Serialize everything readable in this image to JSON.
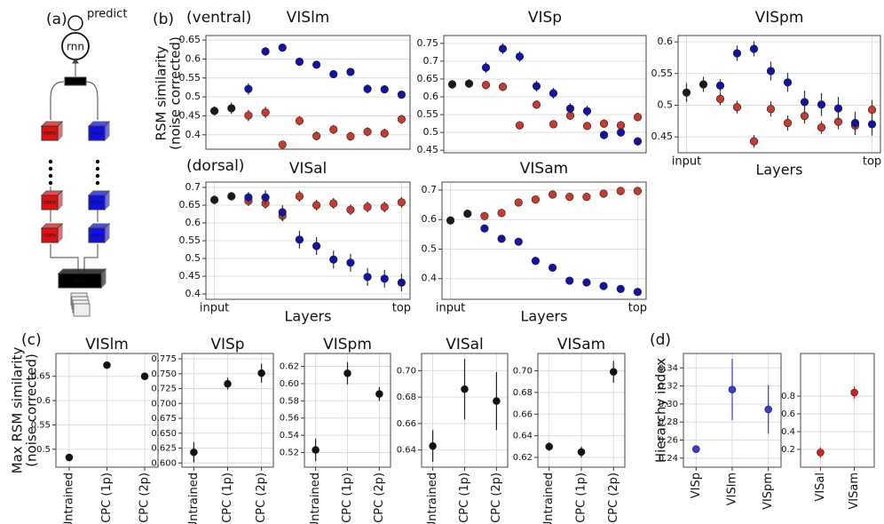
{
  "panel_labels": [
    "(a)",
    "(b)",
    "(c)",
    "(d)"
  ],
  "annotations": [
    "(ventral)",
    "(dorsal)"
  ],
  "diagram": {
    "predict": "predict",
    "rnn": "rnn",
    "conv": "conv"
  },
  "chart_data": [
    {
      "type": "scatter",
      "title": "VISlm",
      "ylabel": [
        "RSM similarity",
        "(noise corrected)"
      ],
      "xlim": [
        -0.5,
        11.5
      ],
      "ylim": [
        0.362,
        0.662
      ],
      "yticks": [
        0.4,
        0.45,
        0.5,
        0.55,
        0.6,
        0.65
      ],
      "grid": true,
      "series": [
        {
          "color": "#1a1a1a",
          "x": [
            0,
            1
          ],
          "values": [
            0.463,
            0.47
          ],
          "errors": [
            0.012,
            0.015
          ]
        },
        {
          "color": "#c83a2e",
          "x": [
            2,
            3,
            4,
            5,
            6,
            7,
            8,
            9,
            10,
            11
          ],
          "values": [
            0.451,
            0.459,
            0.374,
            0.437,
            0.397,
            0.414,
            0.396,
            0.408,
            0.404,
            0.441
          ],
          "errors": [
            0.015,
            0.015,
            0.01,
            0.012,
            0.012,
            0.012,
            0.012,
            0.012,
            0.012,
            0.012
          ]
        },
        {
          "color": "#1212a8",
          "x": [
            2,
            3,
            4,
            5,
            6,
            7,
            8,
            9,
            10,
            11
          ],
          "values": [
            0.521,
            0.62,
            0.63,
            0.593,
            0.585,
            0.56,
            0.566,
            0.521,
            0.52,
            0.506
          ],
          "errors": [
            0.015,
            0.012,
            0.01,
            0.008,
            0.008,
            0.008,
            0.01,
            0.012,
            0.01,
            0.01
          ]
        }
      ]
    },
    {
      "type": "scatter",
      "title": "VISp",
      "xlim": [
        -0.5,
        11.5
      ],
      "ylim": [
        0.443,
        0.772
      ],
      "yticks": [
        0.45,
        0.5,
        0.55,
        0.6,
        0.65,
        0.7,
        0.75
      ],
      "grid": true,
      "series": [
        {
          "color": "#1a1a1a",
          "x": [
            0,
            1
          ],
          "values": [
            0.635,
            0.637
          ],
          "errors": [
            0.012,
            0.012
          ]
        },
        {
          "color": "#c83a2e",
          "x": [
            2,
            3,
            4,
            5,
            6,
            7,
            8,
            9,
            10,
            11
          ],
          "values": [
            0.633,
            0.628,
            0.52,
            0.578,
            0.523,
            0.547,
            0.518,
            0.525,
            0.52,
            0.543
          ],
          "errors": [
            0.012,
            0.012,
            0.01,
            0.012,
            0.01,
            0.012,
            0.01,
            0.012,
            0.012,
            0.012
          ]
        },
        {
          "color": "#1212a8",
          "x": [
            2,
            3,
            4,
            5,
            6,
            7,
            8,
            9,
            10,
            11
          ],
          "values": [
            0.682,
            0.735,
            0.713,
            0.63,
            0.61,
            0.567,
            0.56,
            0.493,
            0.5,
            0.475
          ],
          "errors": [
            0.015,
            0.015,
            0.015,
            0.015,
            0.015,
            0.015,
            0.015,
            0.012,
            0.012,
            0.012
          ]
        }
      ]
    },
    {
      "type": "scatter",
      "title": "VISpm",
      "xlabel": "Layers",
      "xlim": [
        -0.5,
        11.5
      ],
      "ylim": [
        0.425,
        0.61
      ],
      "yticks": [
        0.45,
        0.5,
        0.55,
        0.6
      ],
      "xticks": [
        {
          "value": 0,
          "label": "input"
        },
        {
          "value": 11,
          "label": "top"
        }
      ],
      "grid": true,
      "series": [
        {
          "color": "#1a1a1a",
          "x": [
            0,
            1
          ],
          "values": [
            0.52,
            0.533
          ],
          "errors": [
            0.015,
            0.012
          ]
        },
        {
          "color": "#c83a2e",
          "x": [
            2,
            3,
            4,
            5,
            6,
            7,
            8,
            9,
            10,
            11
          ],
          "values": [
            0.51,
            0.497,
            0.443,
            0.494,
            0.472,
            0.483,
            0.465,
            0.474,
            0.468,
            0.493
          ],
          "errors": [
            0.01,
            0.01,
            0.01,
            0.012,
            0.012,
            0.012,
            0.01,
            0.012,
            0.015,
            0.015
          ]
        },
        {
          "color": "#1212a8",
          "x": [
            2,
            3,
            4,
            5,
            6,
            7,
            8,
            9,
            10,
            11
          ],
          "values": [
            0.531,
            0.582,
            0.589,
            0.554,
            0.536,
            0.505,
            0.501,
            0.495,
            0.472,
            0.47
          ],
          "errors": [
            0.01,
            0.012,
            0.012,
            0.015,
            0.015,
            0.018,
            0.018,
            0.018,
            0.018,
            0.018
          ]
        }
      ]
    },
    {
      "type": "scatter",
      "title": "VISal",
      "xlabel": "Layers",
      "xlim": [
        -0.5,
        11.5
      ],
      "ylim": [
        0.385,
        0.715
      ],
      "yticks": [
        0.4,
        0.45,
        0.5,
        0.55,
        0.6,
        0.65,
        0.7
      ],
      "xticks": [
        {
          "value": 0,
          "label": "input"
        },
        {
          "value": 11,
          "label": "top"
        }
      ],
      "grid": true,
      "series": [
        {
          "color": "#1a1a1a",
          "x": [
            0,
            1
          ],
          "values": [
            0.665,
            0.675
          ],
          "errors": [
            0.012,
            0.012
          ]
        },
        {
          "color": "#c83a2e",
          "x": [
            2,
            3,
            4,
            5,
            6,
            7,
            8,
            9,
            10,
            11
          ],
          "values": [
            0.662,
            0.655,
            0.62,
            0.675,
            0.65,
            0.655,
            0.637,
            0.645,
            0.645,
            0.658
          ],
          "errors": [
            0.015,
            0.015,
            0.015,
            0.015,
            0.015,
            0.015,
            0.015,
            0.015,
            0.015,
            0.015
          ]
        },
        {
          "color": "#1212a8",
          "x": [
            2,
            3,
            4,
            5,
            6,
            7,
            8,
            9,
            10,
            11
          ],
          "values": [
            0.672,
            0.672,
            0.63,
            0.553,
            0.535,
            0.497,
            0.488,
            0.448,
            0.443,
            0.432
          ],
          "errors": [
            0.015,
            0.02,
            0.02,
            0.025,
            0.025,
            0.025,
            0.025,
            0.025,
            0.025,
            0.025
          ]
        }
      ]
    },
    {
      "type": "scatter",
      "title": "VISam",
      "xlabel": "Layers",
      "xlim": [
        -0.5,
        11.5
      ],
      "ylim": [
        0.33,
        0.727
      ],
      "yticks": [
        0.4,
        0.5,
        0.6,
        0.7
      ],
      "xticks": [
        {
          "value": 0,
          "label": "input"
        },
        {
          "value": 11,
          "label": "top"
        }
      ],
      "grid": true,
      "series": [
        {
          "color": "#1a1a1a",
          "x": [
            0,
            1
          ],
          "values": [
            0.597,
            0.62
          ],
          "errors": [
            0.005,
            0.005
          ]
        },
        {
          "color": "#c83a2e",
          "x": [
            2,
            3,
            4,
            5,
            6,
            7,
            8,
            9,
            10,
            11
          ],
          "values": [
            0.612,
            0.622,
            0.658,
            0.668,
            0.685,
            0.677,
            0.677,
            0.688,
            0.697,
            0.697
          ],
          "errors": [
            0.005,
            0.005,
            0.005,
            0.005,
            0.005,
            0.005,
            0.005,
            0.005,
            0.005,
            0.005
          ]
        },
        {
          "color": "#1212a8",
          "x": [
            2,
            3,
            4,
            5,
            6,
            7,
            8,
            9,
            10,
            11
          ],
          "values": [
            0.57,
            0.535,
            0.525,
            0.46,
            0.437,
            0.393,
            0.387,
            0.375,
            0.365,
            0.355
          ],
          "errors": [
            0.005,
            0.005,
            0.005,
            0.005,
            0.005,
            0.005,
            0.005,
            0.005,
            0.005,
            0.005
          ]
        }
      ]
    },
    {
      "type": "errorbar",
      "title": "VISlm",
      "ylabel": [
        "Max RSM similarity",
        "(noise corrected)"
      ],
      "categories": [
        "Untrained",
        "CPC (1p)",
        "CPC (2p)"
      ],
      "ylim": [
        0.463,
        0.697
      ],
      "yticks": [
        0.5,
        0.55,
        0.6,
        0.65
      ],
      "grid": true,
      "series": [
        {
          "color": "#111111",
          "values": [
            0.483,
            0.673,
            0.65
          ],
          "errors": [
            0.007,
            0.006,
            0.006
          ]
        }
      ]
    },
    {
      "type": "errorbar",
      "title": "VISp",
      "categories": [
        "Untrained",
        "CPC (1p)",
        "CPC (2p)"
      ],
      "ylim": [
        0.593,
        0.784
      ],
      "yticks": [
        {
          "value": 0.6,
          "label": "0.600"
        },
        0.625,
        {
          "value": 0.65,
          "label": "0.650"
        },
        0.675,
        {
          "value": 0.7,
          "label": "0.700"
        },
        0.725,
        {
          "value": 0.75,
          "label": "0.750"
        },
        0.775
      ],
      "grid": true,
      "series": [
        {
          "color": "#111111",
          "values": [
            0.618,
            0.733,
            0.751
          ],
          "errors": [
            0.017,
            0.01,
            0.016
          ]
        }
      ]
    },
    {
      "type": "errorbar",
      "title": "VISpm",
      "categories": [
        "Untrained",
        "CPC (1p)",
        "CPC (2p)"
      ],
      "ylim": [
        0.503,
        0.635
      ],
      "yticks": [
        0.52,
        0.54,
        0.56,
        0.58,
        {
          "value": 0.6,
          "label": "0.60"
        },
        0.62
      ],
      "grid": true,
      "series": [
        {
          "color": "#111111",
          "values": [
            0.523,
            0.612,
            0.588
          ],
          "errors": [
            0.013,
            0.013,
            0.008
          ]
        }
      ]
    },
    {
      "type": "errorbar",
      "title": "VISal",
      "categories": [
        "Untrained",
        "CPC (1p)",
        "CPC (2p)"
      ],
      "ylim": [
        0.627,
        0.713
      ],
      "yticks": [
        0.64,
        0.66,
        0.68,
        {
          "value": 0.7,
          "label": "0.70"
        }
      ],
      "grid": true,
      "series": [
        {
          "color": "#111111",
          "values": [
            0.643,
            0.686,
            0.677
          ],
          "errors": [
            0.012,
            0.023,
            0.022
          ]
        }
      ]
    },
    {
      "type": "errorbar",
      "title": "VISam",
      "categories": [
        "Untrained",
        "CPC (1p)",
        "CPC (2p)"
      ],
      "ylim": [
        0.611,
        0.716
      ],
      "yticks": [
        0.62,
        0.64,
        0.66,
        0.68,
        {
          "value": 0.7,
          "label": "0.70"
        }
      ],
      "grid": true,
      "series": [
        {
          "color": "#111111",
          "values": [
            0.63,
            0.625,
            0.699
          ],
          "errors": [
            0.004,
            0.005,
            0.01
          ]
        }
      ]
    },
    {
      "type": "errorbar",
      "ylabel": [
        "Hierarchy index"
      ],
      "categories": [
        "VISp",
        "VISlm",
        "VISpm"
      ],
      "ylim": [
        0.23,
        0.356
      ],
      "yticks": [
        0.24,
        0.26,
        0.28,
        {
          "value": 0.3,
          "label": "0.30"
        },
        0.32,
        0.34
      ],
      "grid": true,
      "series": [
        {
          "color": "#3a3ad6",
          "values": [
            0.25,
            0.316,
            0.294
          ],
          "errors": [
            0.003,
            0.034,
            0.027
          ]
        }
      ]
    },
    {
      "type": "errorbar",
      "categories": [
        "VISal",
        "VISam"
      ],
      "ylim": [
        0,
        1.28
      ],
      "yticks": [
        0.2,
        0.4,
        0.6,
        0.8
      ],
      "grid": true,
      "series": [
        {
          "color": "#d42020",
          "values": [
            0.165,
            0.84
          ],
          "errors": [
            0.06,
            0.07
          ]
        }
      ]
    }
  ]
}
